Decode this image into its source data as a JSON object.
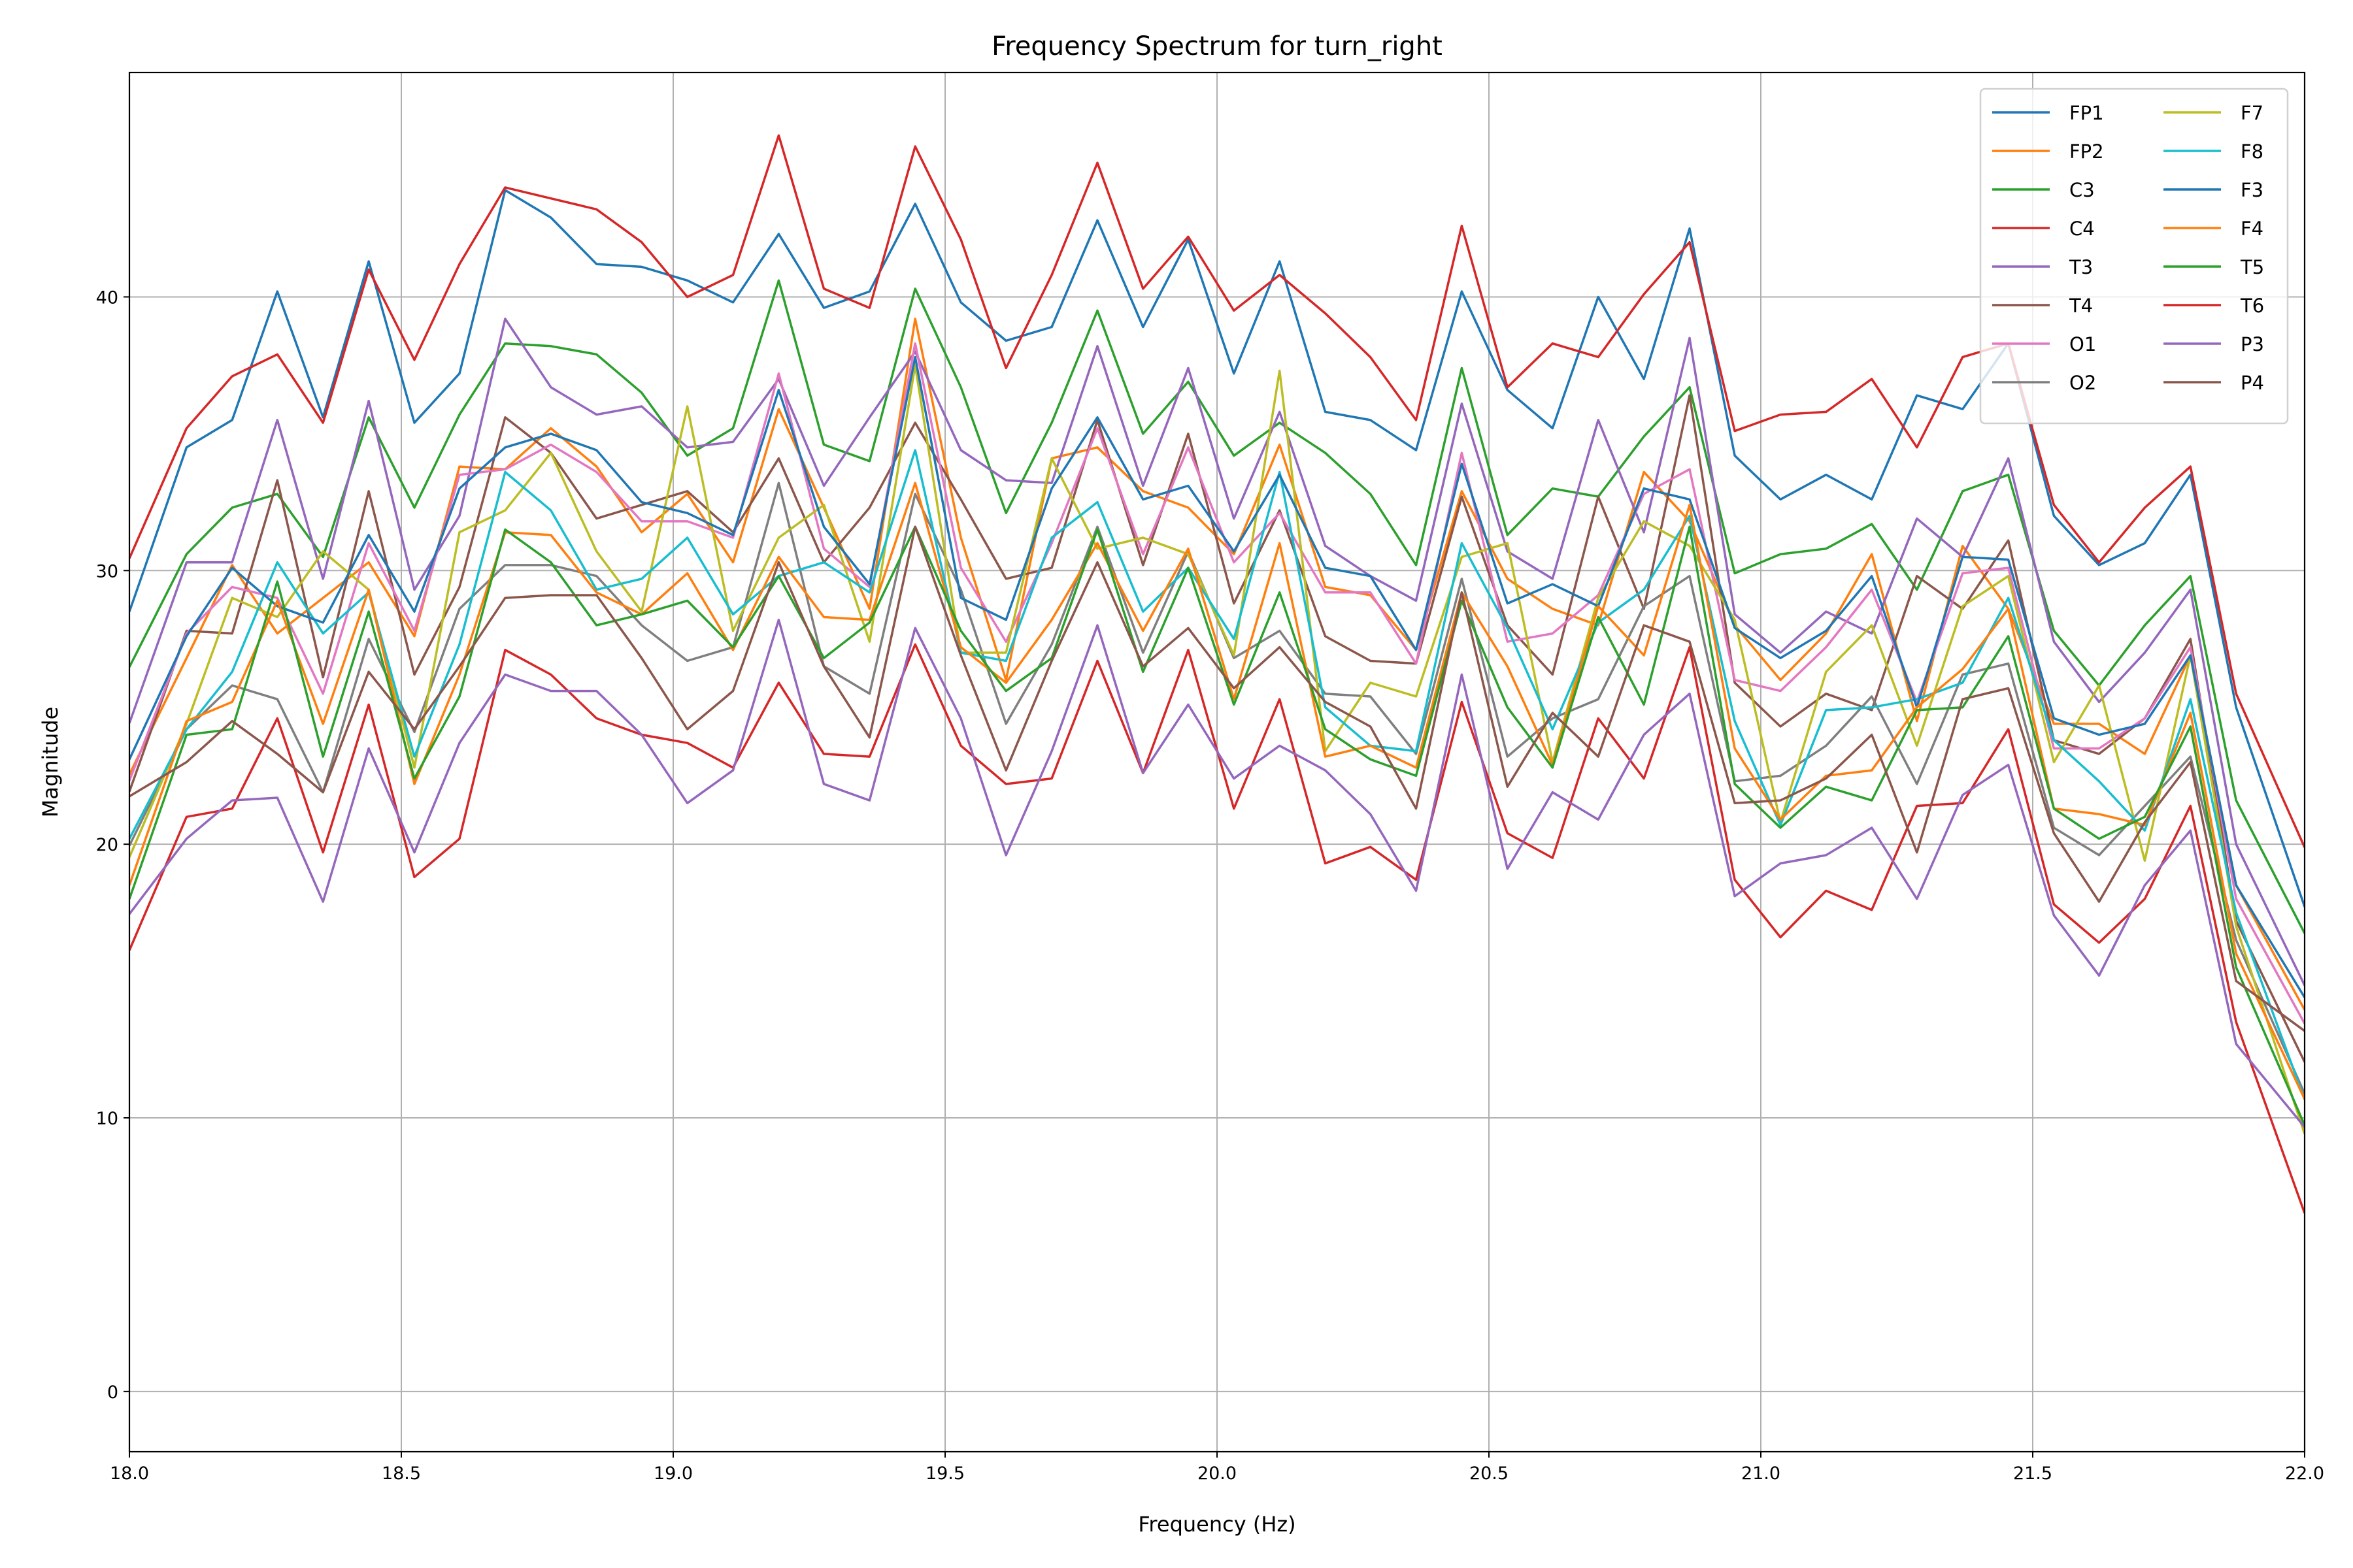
{
  "chart_data": {
    "type": "line",
    "title": "Frequency Spectrum for turn_right",
    "xlabel": "Frequency (Hz)",
    "ylabel": "Magnitude",
    "xlim": [
      18.0,
      22.0
    ],
    "ylim": [
      -2.2,
      48.2
    ],
    "xticks": [
      "18.0",
      "18.5",
      "19.0",
      "19.5",
      "20.0",
      "20.5",
      "21.0",
      "21.5",
      "22.0"
    ],
    "yticks": [
      "0",
      "10",
      "20",
      "30",
      "40"
    ],
    "grid": true,
    "legend_placement": "upper-right",
    "legend_columns": 2,
    "x": [
      18.021,
      18.105,
      18.189,
      18.272,
      18.356,
      18.44,
      18.524,
      18.607,
      18.691,
      18.775,
      18.859,
      18.942,
      19.026,
      19.11,
      19.194,
      19.277,
      19.361,
      19.445,
      19.529,
      19.612,
      19.696,
      19.78,
      19.864,
      19.947,
      20.031,
      20.115,
      20.199,
      20.282,
      20.366,
      20.45,
      20.534,
      20.617,
      20.701,
      20.785,
      20.869,
      20.952,
      21.036,
      21.12,
      21.204,
      21.287,
      21.371,
      21.455,
      21.539,
      21.622,
      21.706,
      21.79,
      21.874,
      21.957
    ],
    "series": [
      {
        "name": "FP1",
        "color": "#1f77b4",
        "values": [
          29.7,
          34.5,
          35.5,
          40.2,
          35.6,
          41.3,
          35.4,
          37.2,
          43.9,
          42.9,
          41.2,
          41.1,
          40.6,
          39.8,
          42.3,
          39.6,
          40.2,
          43.4,
          39.8,
          38.4,
          38.9,
          42.8,
          38.9,
          42.1,
          37.2,
          41.3,
          35.8,
          35.5,
          34.4,
          40.2,
          36.6,
          35.2,
          40.0,
          37.0,
          42.5,
          34.2,
          32.6,
          33.5,
          32.6,
          36.4,
          35.9,
          38.3,
          32.0,
          30.2,
          31.0,
          33.5,
          25.0,
          20.2
        ]
      },
      {
        "name": "FP2",
        "color": "#ff7f0e",
        "values": [
          23.4,
          26.8,
          30.2,
          27.7,
          29.0,
          30.3,
          27.6,
          33.8,
          33.7,
          35.2,
          33.8,
          31.4,
          32.8,
          30.3,
          35.9,
          32.3,
          28.6,
          39.2,
          31.2,
          26.0,
          34.1,
          34.5,
          32.9,
          32.3,
          30.6,
          34.6,
          29.4,
          29.1,
          27.1,
          32.9,
          29.7,
          28.6,
          28.0,
          33.6,
          31.8,
          28.0,
          26.0,
          27.7,
          30.6,
          24.5,
          30.9,
          28.6,
          24.4,
          24.4,
          23.3,
          26.9,
          18.5,
          15.5
        ]
      },
      {
        "name": "C3",
        "color": "#2ca02c",
        "values": [
          27.3,
          30.6,
          32.3,
          32.8,
          30.5,
          35.6,
          32.3,
          35.7,
          38.3,
          38.2,
          37.9,
          36.5,
          34.2,
          35.2,
          40.6,
          34.6,
          34.0,
          40.3,
          36.7,
          32.1,
          35.4,
          39.5,
          35.0,
          36.9,
          34.2,
          35.4,
          34.3,
          32.8,
          30.2,
          37.4,
          31.3,
          33.0,
          32.7,
          34.9,
          36.7,
          29.9,
          30.6,
          30.8,
          31.7,
          29.3,
          32.9,
          33.5,
          27.8,
          25.8,
          28.0,
          29.8,
          21.6,
          18.4
        ]
      },
      {
        "name": "C4",
        "color": "#d62728",
        "values": [
          31.4,
          35.2,
          37.1,
          37.9,
          35.4,
          41.0,
          37.7,
          41.2,
          44.0,
          43.6,
          43.2,
          42.0,
          40.0,
          40.8,
          45.9,
          40.3,
          39.6,
          45.5,
          42.1,
          37.4,
          40.8,
          44.9,
          40.3,
          42.2,
          39.5,
          40.8,
          39.4,
          37.8,
          35.5,
          42.6,
          36.7,
          38.3,
          37.8,
          40.1,
          42.0,
          35.1,
          35.7,
          35.8,
          37.0,
          34.5,
          37.8,
          38.3,
          32.4,
          30.3,
          32.3,
          33.8,
          25.5,
          21.8
        ]
      },
      {
        "name": "T3",
        "color": "#9467bd",
        "values": [
          25.6,
          30.3,
          30.3,
          35.5,
          29.7,
          36.2,
          29.3,
          32.0,
          39.2,
          36.7,
          35.7,
          36.0,
          34.5,
          34.7,
          37.0,
          33.1,
          35.6,
          38.0,
          34.4,
          33.3,
          33.2,
          38.2,
          33.1,
          37.4,
          31.9,
          35.8,
          30.9,
          29.8,
          28.9,
          36.1,
          30.7,
          29.7,
          35.5,
          31.4,
          38.5,
          28.4,
          27.0,
          28.5,
          27.7,
          31.9,
          30.5,
          34.1,
          27.4,
          25.2,
          27.0,
          29.3,
          20.0,
          16.6
        ]
      },
      {
        "name": "T4",
        "color": "#8c564b",
        "values": [
          23.1,
          27.8,
          27.7,
          33.3,
          26.1,
          32.9,
          26.2,
          29.4,
          35.6,
          34.3,
          31.9,
          32.4,
          32.9,
          31.4,
          34.1,
          30.3,
          32.3,
          35.4,
          32.6,
          29.7,
          30.1,
          35.5,
          30.2,
          35.0,
          28.8,
          32.2,
          27.6,
          26.7,
          26.6,
          32.7,
          28.0,
          26.2,
          32.7,
          28.6,
          36.4,
          25.9,
          24.3,
          25.5,
          24.9,
          29.8,
          28.6,
          31.1,
          23.8,
          23.3,
          24.6,
          27.5,
          17.2,
          13.8
        ]
      },
      {
        "name": "O1",
        "color": "#e377c2",
        "values": [
          23.4,
          27.7,
          29.4,
          29.0,
          25.5,
          31.0,
          27.8,
          33.5,
          33.7,
          34.6,
          33.6,
          31.8,
          31.8,
          31.2,
          37.2,
          30.8,
          29.4,
          38.3,
          30.1,
          27.4,
          31.0,
          35.2,
          30.6,
          34.5,
          30.3,
          32.1,
          29.2,
          29.2,
          26.6,
          34.3,
          27.4,
          27.7,
          29.1,
          32.8,
          33.7,
          26.0,
          25.6,
          27.2,
          29.3,
          25.2,
          29.9,
          30.1,
          23.5,
          23.5,
          24.6,
          27.2,
          18.0,
          15.0
        ]
      },
      {
        "name": "O2",
        "color": "#7f7f7f",
        "values": [
          20.8,
          24.2,
          25.8,
          25.3,
          21.9,
          27.5,
          24.1,
          28.6,
          30.2,
          30.2,
          29.8,
          28.0,
          26.7,
          27.2,
          33.2,
          26.5,
          25.5,
          32.8,
          29.3,
          24.4,
          27.3,
          31.6,
          27.0,
          30.7,
          26.8,
          27.8,
          25.5,
          25.4,
          23.3,
          29.7,
          23.2,
          24.6,
          25.3,
          28.7,
          29.8,
          22.3,
          22.5,
          23.6,
          25.4,
          22.2,
          26.2,
          26.6,
          20.6,
          19.6,
          21.4,
          23.2,
          16.5,
          12.8
        ]
      },
      {
        "name": "F7",
        "color": "#bcbd22",
        "values": [
          20.5,
          24.4,
          29.0,
          28.3,
          30.7,
          29.3,
          22.8,
          31.4,
          32.2,
          34.3,
          30.7,
          28.5,
          36.0,
          27.8,
          31.2,
          32.4,
          27.4,
          37.5,
          27.0,
          27.0,
          34.1,
          30.8,
          31.2,
          30.6,
          26.9,
          37.3,
          23.4,
          25.9,
          25.4,
          30.5,
          31.0,
          23.0,
          29.0,
          31.8,
          30.9,
          28.2,
          20.8,
          26.3,
          28.0,
          23.6,
          28.7,
          29.8,
          23.0,
          25.8,
          19.4,
          26.9,
          17.0,
          12.0
        ]
      },
      {
        "name": "F8",
        "color": "#17becf",
        "values": [
          21.0,
          24.2,
          26.3,
          30.3,
          27.7,
          29.2,
          23.2,
          27.3,
          33.6,
          32.2,
          29.3,
          29.7,
          31.2,
          28.4,
          29.8,
          30.3,
          29.2,
          34.4,
          27.0,
          26.7,
          31.2,
          32.5,
          28.5,
          30.1,
          27.5,
          33.6,
          25.0,
          23.6,
          23.4,
          31.0,
          27.9,
          24.2,
          28.1,
          29.3,
          32.0,
          24.5,
          20.7,
          24.9,
          25.0,
          25.3,
          25.9,
          29.0,
          23.8,
          22.3,
          20.5,
          25.3,
          17.5,
          13.0
        ]
      },
      {
        "name": "F3",
        "color": "#1f77b4",
        "values": [
          24.0,
          27.6,
          30.1,
          28.7,
          28.1,
          31.3,
          28.5,
          33.0,
          34.5,
          35.0,
          34.4,
          32.5,
          32.1,
          31.3,
          36.6,
          31.6,
          29.5,
          37.8,
          29.0,
          28.2,
          33.0,
          35.6,
          32.6,
          33.1,
          30.7,
          33.5,
          30.1,
          29.8,
          27.1,
          33.9,
          28.8,
          29.5,
          28.7,
          33.0,
          32.6,
          27.9,
          26.8,
          27.8,
          29.8,
          25.0,
          30.5,
          30.4,
          24.6,
          24.0,
          24.4,
          26.9,
          18.5,
          15.8
        ]
      },
      {
        "name": "F4",
        "color": "#ff7f0e",
        "values": [
          19.7,
          24.5,
          25.2,
          28.9,
          24.4,
          29.3,
          22.2,
          26.2,
          31.4,
          31.3,
          29.2,
          28.4,
          29.9,
          27.1,
          30.5,
          28.3,
          28.2,
          33.2,
          27.2,
          25.9,
          28.2,
          31.0,
          27.8,
          30.8,
          25.3,
          31.0,
          23.2,
          23.6,
          22.8,
          29.2,
          26.5,
          22.9,
          28.7,
          26.9,
          32.4,
          23.5,
          20.9,
          22.5,
          22.7,
          25.0,
          26.4,
          28.6,
          21.3,
          21.1,
          20.7,
          24.8,
          16.0,
          12.5
        ]
      },
      {
        "name": "T5",
        "color": "#2ca02c",
        "values": [
          19.2,
          24.0,
          24.2,
          29.6,
          23.2,
          28.5,
          22.4,
          25.4,
          31.5,
          30.3,
          28.0,
          28.4,
          28.9,
          27.2,
          29.8,
          26.8,
          28.1,
          31.6,
          27.8,
          25.6,
          26.8,
          31.5,
          26.3,
          30.1,
          25.1,
          29.2,
          24.2,
          23.1,
          22.5,
          28.9,
          25.0,
          22.8,
          28.3,
          25.1,
          31.6,
          22.2,
          20.6,
          22.1,
          21.6,
          24.9,
          25.0,
          27.6,
          21.3,
          20.2,
          21.0,
          24.3,
          15.5,
          11.7
        ]
      },
      {
        "name": "T6",
        "color": "#d62728",
        "values": [
          17.1,
          21.0,
          21.3,
          24.6,
          19.7,
          25.1,
          18.8,
          20.2,
          27.1,
          26.2,
          24.6,
          24.0,
          23.7,
          22.8,
          25.9,
          23.3,
          23.2,
          27.3,
          23.6,
          22.2,
          22.4,
          26.7,
          22.6,
          27.1,
          21.3,
          25.3,
          19.3,
          19.9,
          18.7,
          25.2,
          20.4,
          19.5,
          24.6,
          22.4,
          27.2,
          18.7,
          16.6,
          18.3,
          17.6,
          21.4,
          21.5,
          24.2,
          17.8,
          16.4,
          18.0,
          21.4,
          13.5,
          8.9
        ]
      },
      {
        "name": "P3",
        "color": "#9467bd",
        "values": [
          18.0,
          20.2,
          21.6,
          21.7,
          17.9,
          23.5,
          19.7,
          23.7,
          26.2,
          25.6,
          25.6,
          24.0,
          21.5,
          22.7,
          28.2,
          22.2,
          21.6,
          27.9,
          24.6,
          19.6,
          23.4,
          28.0,
          22.6,
          25.1,
          22.4,
          23.6,
          22.7,
          21.1,
          18.3,
          26.2,
          19.1,
          21.9,
          20.9,
          24.0,
          25.5,
          18.1,
          19.3,
          19.6,
          20.6,
          18.0,
          21.8,
          22.9,
          17.4,
          15.2,
          18.5,
          20.5,
          12.7,
          10.7
        ]
      },
      {
        "name": "P4",
        "color": "#8c564b",
        "values": [
          22.0,
          23.0,
          24.5,
          23.3,
          21.9,
          26.3,
          24.2,
          26.5,
          29.0,
          29.1,
          29.1,
          26.8,
          24.2,
          25.6,
          30.3,
          26.5,
          23.9,
          31.6,
          26.9,
          22.7,
          26.7,
          30.3,
          26.5,
          27.9,
          25.7,
          27.2,
          25.2,
          24.3,
          21.3,
          29.2,
          22.1,
          24.8,
          23.2,
          28.0,
          27.4,
          21.5,
          21.6,
          22.4,
          24.0,
          19.7,
          25.3,
          25.7,
          20.4,
          17.9,
          20.8,
          23.0,
          15.0,
          13.8
        ]
      }
    ]
  }
}
